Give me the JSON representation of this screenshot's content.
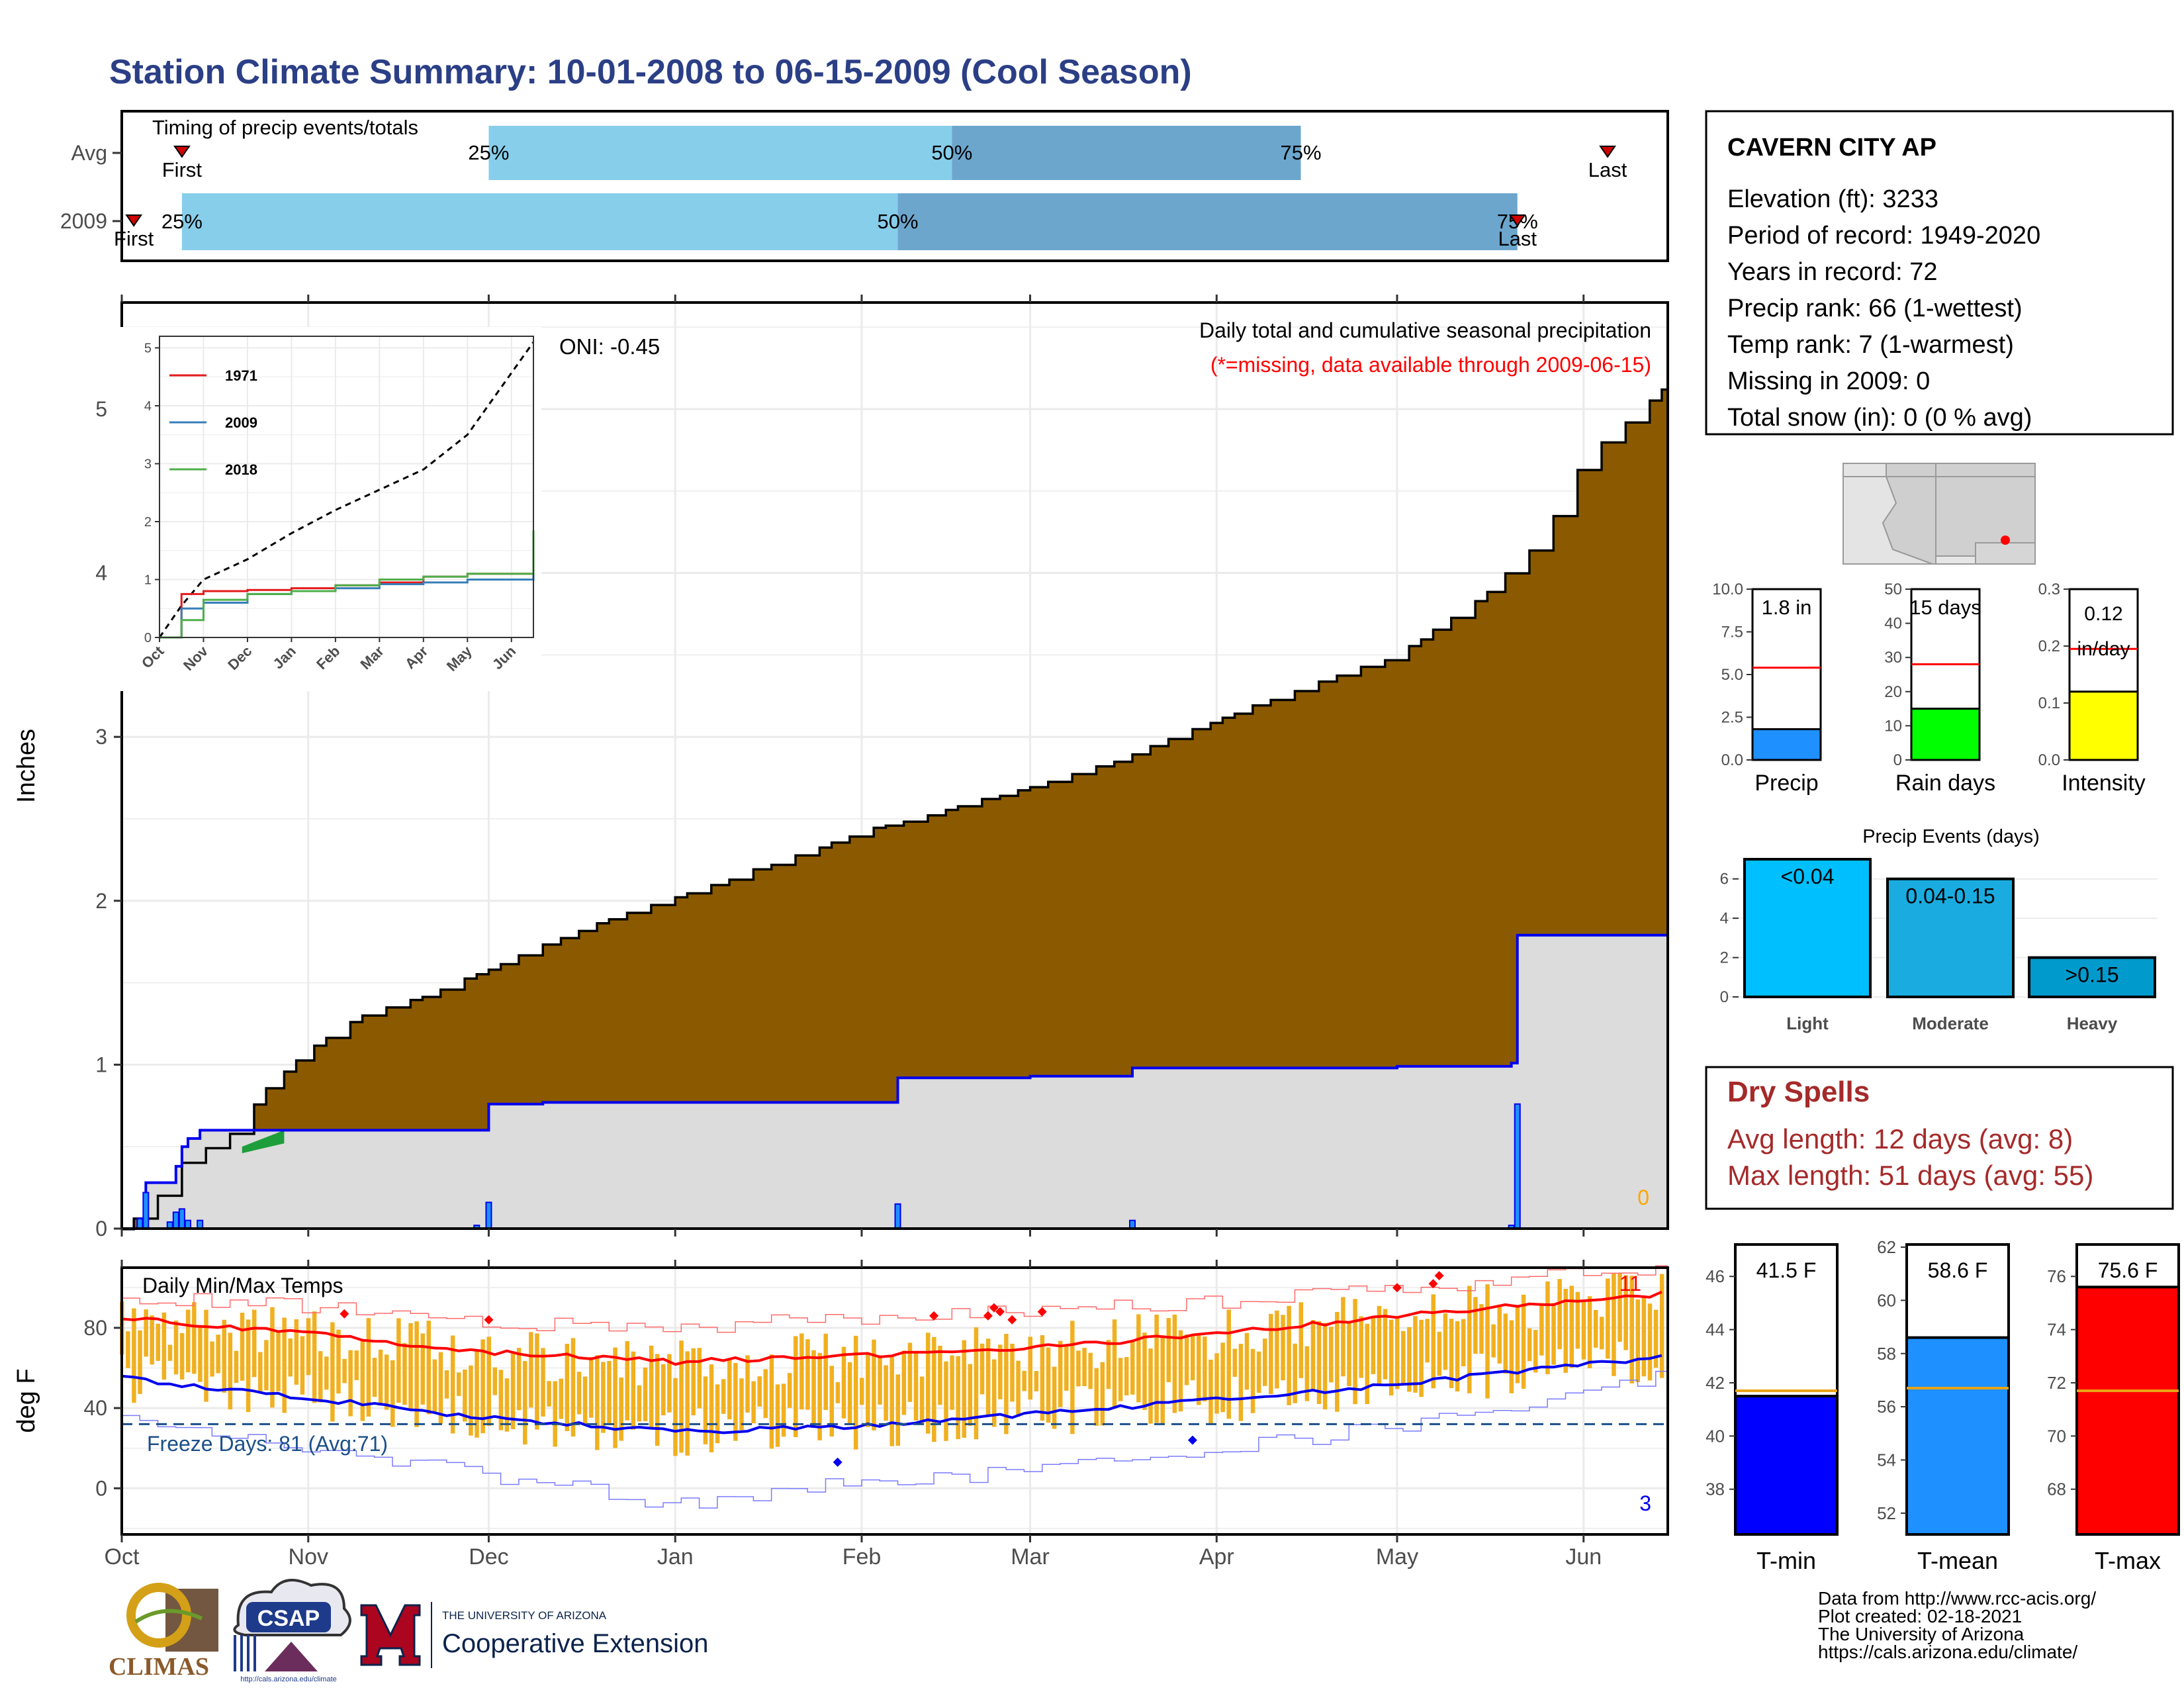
{
  "title": "Station Climate Summary: 10-01-2008 to 06-15-2009 (Cool Season)",
  "colors": {
    "title": "#2B3F86",
    "cum_avg_fill": "#8B5A00",
    "cum_light": "#DCDCDC",
    "blue_line": "#0000EE",
    "timing_light": "#87CEEB",
    "timing_dark": "#6CA6CD",
    "red": "#FF0000",
    "orange": "#F0B020",
    "dry_spells": "#A52A2A",
    "freeze_line": "#1B4F8A",
    "light_bar": "#00BFFF",
    "moderate_bar": "#1AACE0",
    "heavy_bar": "#009ACD",
    "precip_bar": "#1E90FF",
    "raindays_bar": "#00FF00",
    "intensity_bar": "#FFFF00",
    "tmin_bar": "#0000FF",
    "tmean_bar": "#1E90FF",
    "tmax_bar": "#FF0000"
  },
  "timing": {
    "title": "Timing of precip events/totals",
    "rows": [
      {
        "label": "Avg",
        "first_label": "First",
        "last_label": "Last",
        "first": "2008-10-11",
        "p25": "2008-12-01",
        "p50": "2009-02-16",
        "p75": "2009-04-15",
        "last": "2009-06-05"
      },
      {
        "label": "2009",
        "first_label": "First",
        "last_label": "Last",
        "first": "2008-10-03",
        "p25": "2008-10-11",
        "p50": "2009-02-07",
        "p75": "2009-05-21",
        "last": "2009-05-21"
      }
    ],
    "pct_labels": [
      "25%",
      "50%",
      "75%"
    ]
  },
  "precip_panel": {
    "subtitle1": "Daily total and cumulative seasonal precipitation",
    "subtitle2": "(*=missing, data available through 2009-06-15)",
    "oni": "ONI: -0.45",
    "ylabel": "Inches",
    "yticks": [
      "0",
      "1",
      "2",
      "3",
      "4",
      "5"
    ],
    "zero_count": "0"
  },
  "inset": {
    "yticks": [
      "0",
      "1",
      "2",
      "3",
      "4",
      "5"
    ],
    "xticks": [
      "Oct",
      "Nov",
      "Dec",
      "Jan",
      "Feb",
      "Mar",
      "Apr",
      "May",
      "Jun"
    ],
    "legend": [
      {
        "name": "1971",
        "color": "#E41A1C"
      },
      {
        "name": "2009",
        "color": "#377EB8"
      },
      {
        "name": "2018",
        "color": "#4DAF4A"
      }
    ]
  },
  "temp_panel": {
    "title": "Daily Min/Max Temps",
    "ylabel": "deg F",
    "yticks": [
      "0",
      "40",
      "80"
    ],
    "freeze_label": "Freeze Days: 81 (Avg:71)",
    "count_high": "11",
    "count_low": "3"
  },
  "xaxis_months": [
    "Oct",
    "Nov",
    "Dec",
    "Jan",
    "Feb",
    "Mar",
    "Apr",
    "May",
    "Jun"
  ],
  "station": {
    "name": "CAVERN CITY AP",
    "lines": [
      "Elevation (ft): 3233",
      "Period of record: 1949-2020",
      "Years in record: 72",
      "Precip rank: 66 (1-wettest)",
      "Temp rank: 7 (1-warmest)",
      "Missing in 2009: 0",
      "Total snow (in): 0 (0 % avg)"
    ]
  },
  "mini_bars": [
    {
      "key": "precip",
      "label": "Precip",
      "value_label": "1.8 in",
      "value": 1.8,
      "avg": 5.4,
      "ymax": 10,
      "yticks": [
        "0.0",
        "2.5",
        "5.0",
        "7.5",
        "10.0"
      ]
    },
    {
      "key": "raindays",
      "label": "Rain days",
      "value_label": "15 days",
      "value": 15,
      "avg": 28,
      "ymax": 50,
      "yticks": [
        "0",
        "10",
        "20",
        "30",
        "40",
        "50"
      ]
    },
    {
      "key": "intensity",
      "label": "Intensity",
      "value_label": "0.12",
      "value_label2": "in/day",
      "value": 0.12,
      "avg": 0.195,
      "ymax": 0.3,
      "yticks": [
        "0.0",
        "0.1",
        "0.2",
        "0.3"
      ]
    }
  ],
  "precip_events": {
    "title": "Precip Events (days)",
    "yticks": [
      "0",
      "2",
      "4",
      "6"
    ],
    "bars": [
      {
        "category": "Light",
        "label": "<0.04",
        "value": 7
      },
      {
        "category": "Moderate",
        "label": "0.04-0.15",
        "value": 6
      },
      {
        "category": "Heavy",
        "label": ">0.15",
        "value": 2
      }
    ]
  },
  "dry_spells": {
    "title": "Dry Spells",
    "avg": "Avg length: 12 days (avg: 8)",
    "max": "Max length: 51 days (avg: 55)"
  },
  "temp_bars": [
    {
      "label": "T-min",
      "value_label": "41.5 F",
      "value": 41.5,
      "avg": 41.7,
      "ymin": 36.3,
      "ymax": 47.2,
      "yticks": [
        "38",
        "40",
        "42",
        "44",
        "46"
      ]
    },
    {
      "label": "T-mean",
      "value_label": "58.6 F",
      "value": 58.6,
      "avg": 56.7,
      "ymin": 51.2,
      "ymax": 62.1,
      "yticks": [
        "52",
        "54",
        "56",
        "58",
        "60",
        "62"
      ]
    },
    {
      "label": "T-max",
      "value_label": "75.6 F",
      "value": 75.6,
      "avg": 71.7,
      "ymin": 66.3,
      "ymax": 77.2,
      "yticks": [
        "68",
        "70",
        "72",
        "74",
        "76"
      ]
    }
  ],
  "credits": [
    "Data from http://www.rcc-acis.org/",
    "Plot created: 02-18-2021",
    "The University of Arizona",
    "https://cals.arizona.edu/climate/"
  ],
  "logos": {
    "climas": "CLIMAS",
    "csap": "CSAP",
    "csap_url": "http://cals.arizona.edu/climate",
    "ua_small": "THE UNIVERSITY OF ARIZONA",
    "ua_big": "Cooperative Extension"
  },
  "chart_data": [
    {
      "type": "area",
      "title": "Daily total and cumulative seasonal precipitation",
      "ylabel": "Inches",
      "ylim": [
        0,
        5.65
      ],
      "x_range": [
        "2008-10-01",
        "2009-06-15"
      ],
      "series": [
        {
          "name": "cumulative average",
          "x": [
            "2008-10-01",
            "2008-10-07",
            "2008-10-11",
            "2008-10-20",
            "2008-10-25",
            "2008-11-01",
            "2008-11-10",
            "2008-11-20",
            "2008-12-01",
            "2008-12-10",
            "2008-12-20",
            "2009-01-01",
            "2009-01-15",
            "2009-02-01",
            "2009-02-15",
            "2009-03-01",
            "2009-03-15",
            "2009-04-01",
            "2009-04-15",
            "2009-05-01",
            "2009-05-15",
            "2009-05-25",
            "2009-06-01",
            "2009-06-15"
          ],
          "y": [
            0,
            0.2,
            0.4,
            0.6,
            0.85,
            1.1,
            1.3,
            1.42,
            1.58,
            1.73,
            1.88,
            2.02,
            2.2,
            2.42,
            2.55,
            2.7,
            2.85,
            3.1,
            3.3,
            3.5,
            3.85,
            4.2,
            4.7,
            5.15
          ]
        },
        {
          "name": "cumulative 2009",
          "x": [
            "2008-10-01",
            "2008-10-04",
            "2008-10-05",
            "2008-10-09",
            "2008-10-10",
            "2008-10-11",
            "2008-10-12",
            "2008-10-14",
            "2008-11-29",
            "2008-12-01",
            "2008-12-10",
            "2009-02-07",
            "2009-03-01",
            "2009-03-18",
            "2009-05-01",
            "2009-05-20",
            "2009-05-21",
            "2009-06-15"
          ],
          "y": [
            0,
            0.06,
            0.28,
            0.28,
            0.38,
            0.5,
            0.55,
            0.6,
            0.6,
            0.76,
            0.77,
            0.92,
            0.93,
            0.98,
            0.99,
            1.01,
            1.79,
            1.79
          ]
        },
        {
          "name": "daily precipitation",
          "x": [
            "2008-10-04",
            "2008-10-05",
            "2008-10-09",
            "2008-10-10",
            "2008-10-11",
            "2008-10-12",
            "2008-10-14",
            "2008-11-29",
            "2008-12-01",
            "2009-02-07",
            "2009-03-18",
            "2009-05-20",
            "2009-05-21"
          ],
          "y": [
            0.06,
            0.22,
            0.04,
            0.1,
            0.12,
            0.05,
            0.05,
            0.02,
            0.16,
            0.15,
            0.05,
            0.02,
            0.76
          ]
        }
      ]
    },
    {
      "type": "line",
      "title": "",
      "ylim": [
        0,
        5.2
      ],
      "x_range": [
        "Oct",
        "Jun"
      ],
      "series": [
        {
          "name": "cumulative average",
          "x": [
            "Oct",
            "Oct-15",
            "Nov",
            "Dec",
            "Jan",
            "Feb",
            "Mar",
            "Apr",
            "May",
            "Jun"
          ],
          "y": [
            0,
            0.55,
            1.0,
            1.35,
            1.8,
            2.2,
            2.55,
            2.9,
            3.5,
            5.1
          ]
        },
        {
          "name": "1971",
          "x": [
            "Oct",
            "Oct-05",
            "Nov",
            "Dec",
            "Jan",
            "Feb",
            "Mar",
            "Apr",
            "May",
            "Jun"
          ],
          "y": [
            0,
            0.75,
            0.8,
            0.82,
            0.85,
            0.9,
            0.95,
            1.05,
            1.1,
            1.2
          ]
        },
        {
          "name": "2009",
          "x": [
            "Oct",
            "Oct-10",
            "Nov",
            "Dec",
            "Jan",
            "Feb",
            "Mar",
            "Apr",
            "May",
            "Jun"
          ],
          "y": [
            0,
            0.5,
            0.6,
            0.75,
            0.8,
            0.85,
            0.92,
            0.95,
            1.0,
            1.8
          ]
        },
        {
          "name": "2018",
          "x": [
            "Oct",
            "Oct-20",
            "Nov",
            "Dec",
            "Jan",
            "Feb",
            "Mar",
            "Apr",
            "May",
            "Jun"
          ],
          "y": [
            0,
            0.3,
            0.65,
            0.75,
            0.8,
            0.9,
            1.0,
            1.05,
            1.1,
            1.85
          ]
        }
      ]
    },
    {
      "type": "line",
      "title": "Daily Min/Max Temps",
      "ylabel": "deg F",
      "ylim": [
        -23,
        110
      ],
      "x_range": [
        "2008-10-01",
        "2009-06-15"
      ],
      "freeze_threshold": 32,
      "series": [
        {
          "name": "avg max",
          "x": [
            "2008-10-01",
            "2008-11-01",
            "2008-12-01",
            "2009-01-01",
            "2009-02-01",
            "2009-03-01",
            "2009-04-01",
            "2009-05-01",
            "2009-06-15"
          ],
          "y": [
            85,
            77,
            68,
            63,
            66,
            70,
            77,
            86,
            97
          ]
        },
        {
          "name": "avg min",
          "x": [
            "2008-10-01",
            "2008-11-01",
            "2008-12-01",
            "2009-01-01",
            "2009-02-01",
            "2009-03-01",
            "2009-04-01",
            "2009-05-01",
            "2009-06-15"
          ],
          "y": [
            55,
            45,
            35,
            28,
            31,
            37,
            44,
            52,
            66
          ]
        },
        {
          "name": "record max",
          "x": [
            "2008-10-01",
            "2008-11-01",
            "2008-12-01",
            "2009-01-01",
            "2009-02-01",
            "2009-03-01",
            "2009-04-01",
            "2009-05-01",
            "2009-06-15"
          ],
          "y": [
            95,
            90,
            82,
            80,
            85,
            89,
            93,
            100,
            110
          ]
        },
        {
          "name": "record min",
          "x": [
            "2008-10-01",
            "2008-11-01",
            "2008-12-01",
            "2009-01-01",
            "2009-02-01",
            "2009-03-01",
            "2009-04-01",
            "2009-05-01",
            "2009-06-15"
          ],
          "y": [
            37,
            19,
            6,
            -8,
            3,
            9,
            19,
            31,
            57
          ]
        }
      ]
    },
    {
      "type": "bar",
      "title": "",
      "categories": [
        "Precip"
      ],
      "series": [
        {
          "name": "",
          "values": [
            1.8
          ]
        }
      ],
      "avg": 5.4,
      "ylim": [
        0,
        10
      ]
    },
    {
      "type": "bar",
      "title": "",
      "categories": [
        "Rain days"
      ],
      "series": [
        {
          "name": "",
          "values": [
            15
          ]
        }
      ],
      "avg": 28,
      "ylim": [
        0,
        50
      ]
    },
    {
      "type": "bar",
      "title": "",
      "categories": [
        "Intensity"
      ],
      "series": [
        {
          "name": "",
          "values": [
            0.12
          ]
        }
      ],
      "avg": 0.195,
      "ylim": [
        0,
        0.3
      ]
    },
    {
      "type": "bar",
      "title": "Precip Events (days)",
      "categories": [
        "Light",
        "Moderate",
        "Heavy"
      ],
      "values": [
        7,
        6,
        2
      ],
      "ylim": [
        0,
        7
      ]
    },
    {
      "type": "bar",
      "title": "",
      "categories": [
        "T-min",
        "T-mean",
        "T-max"
      ],
      "values": [
        41.5,
        58.6,
        75.6
      ],
      "avg": [
        41.7,
        56.7,
        71.7
      ]
    }
  ]
}
